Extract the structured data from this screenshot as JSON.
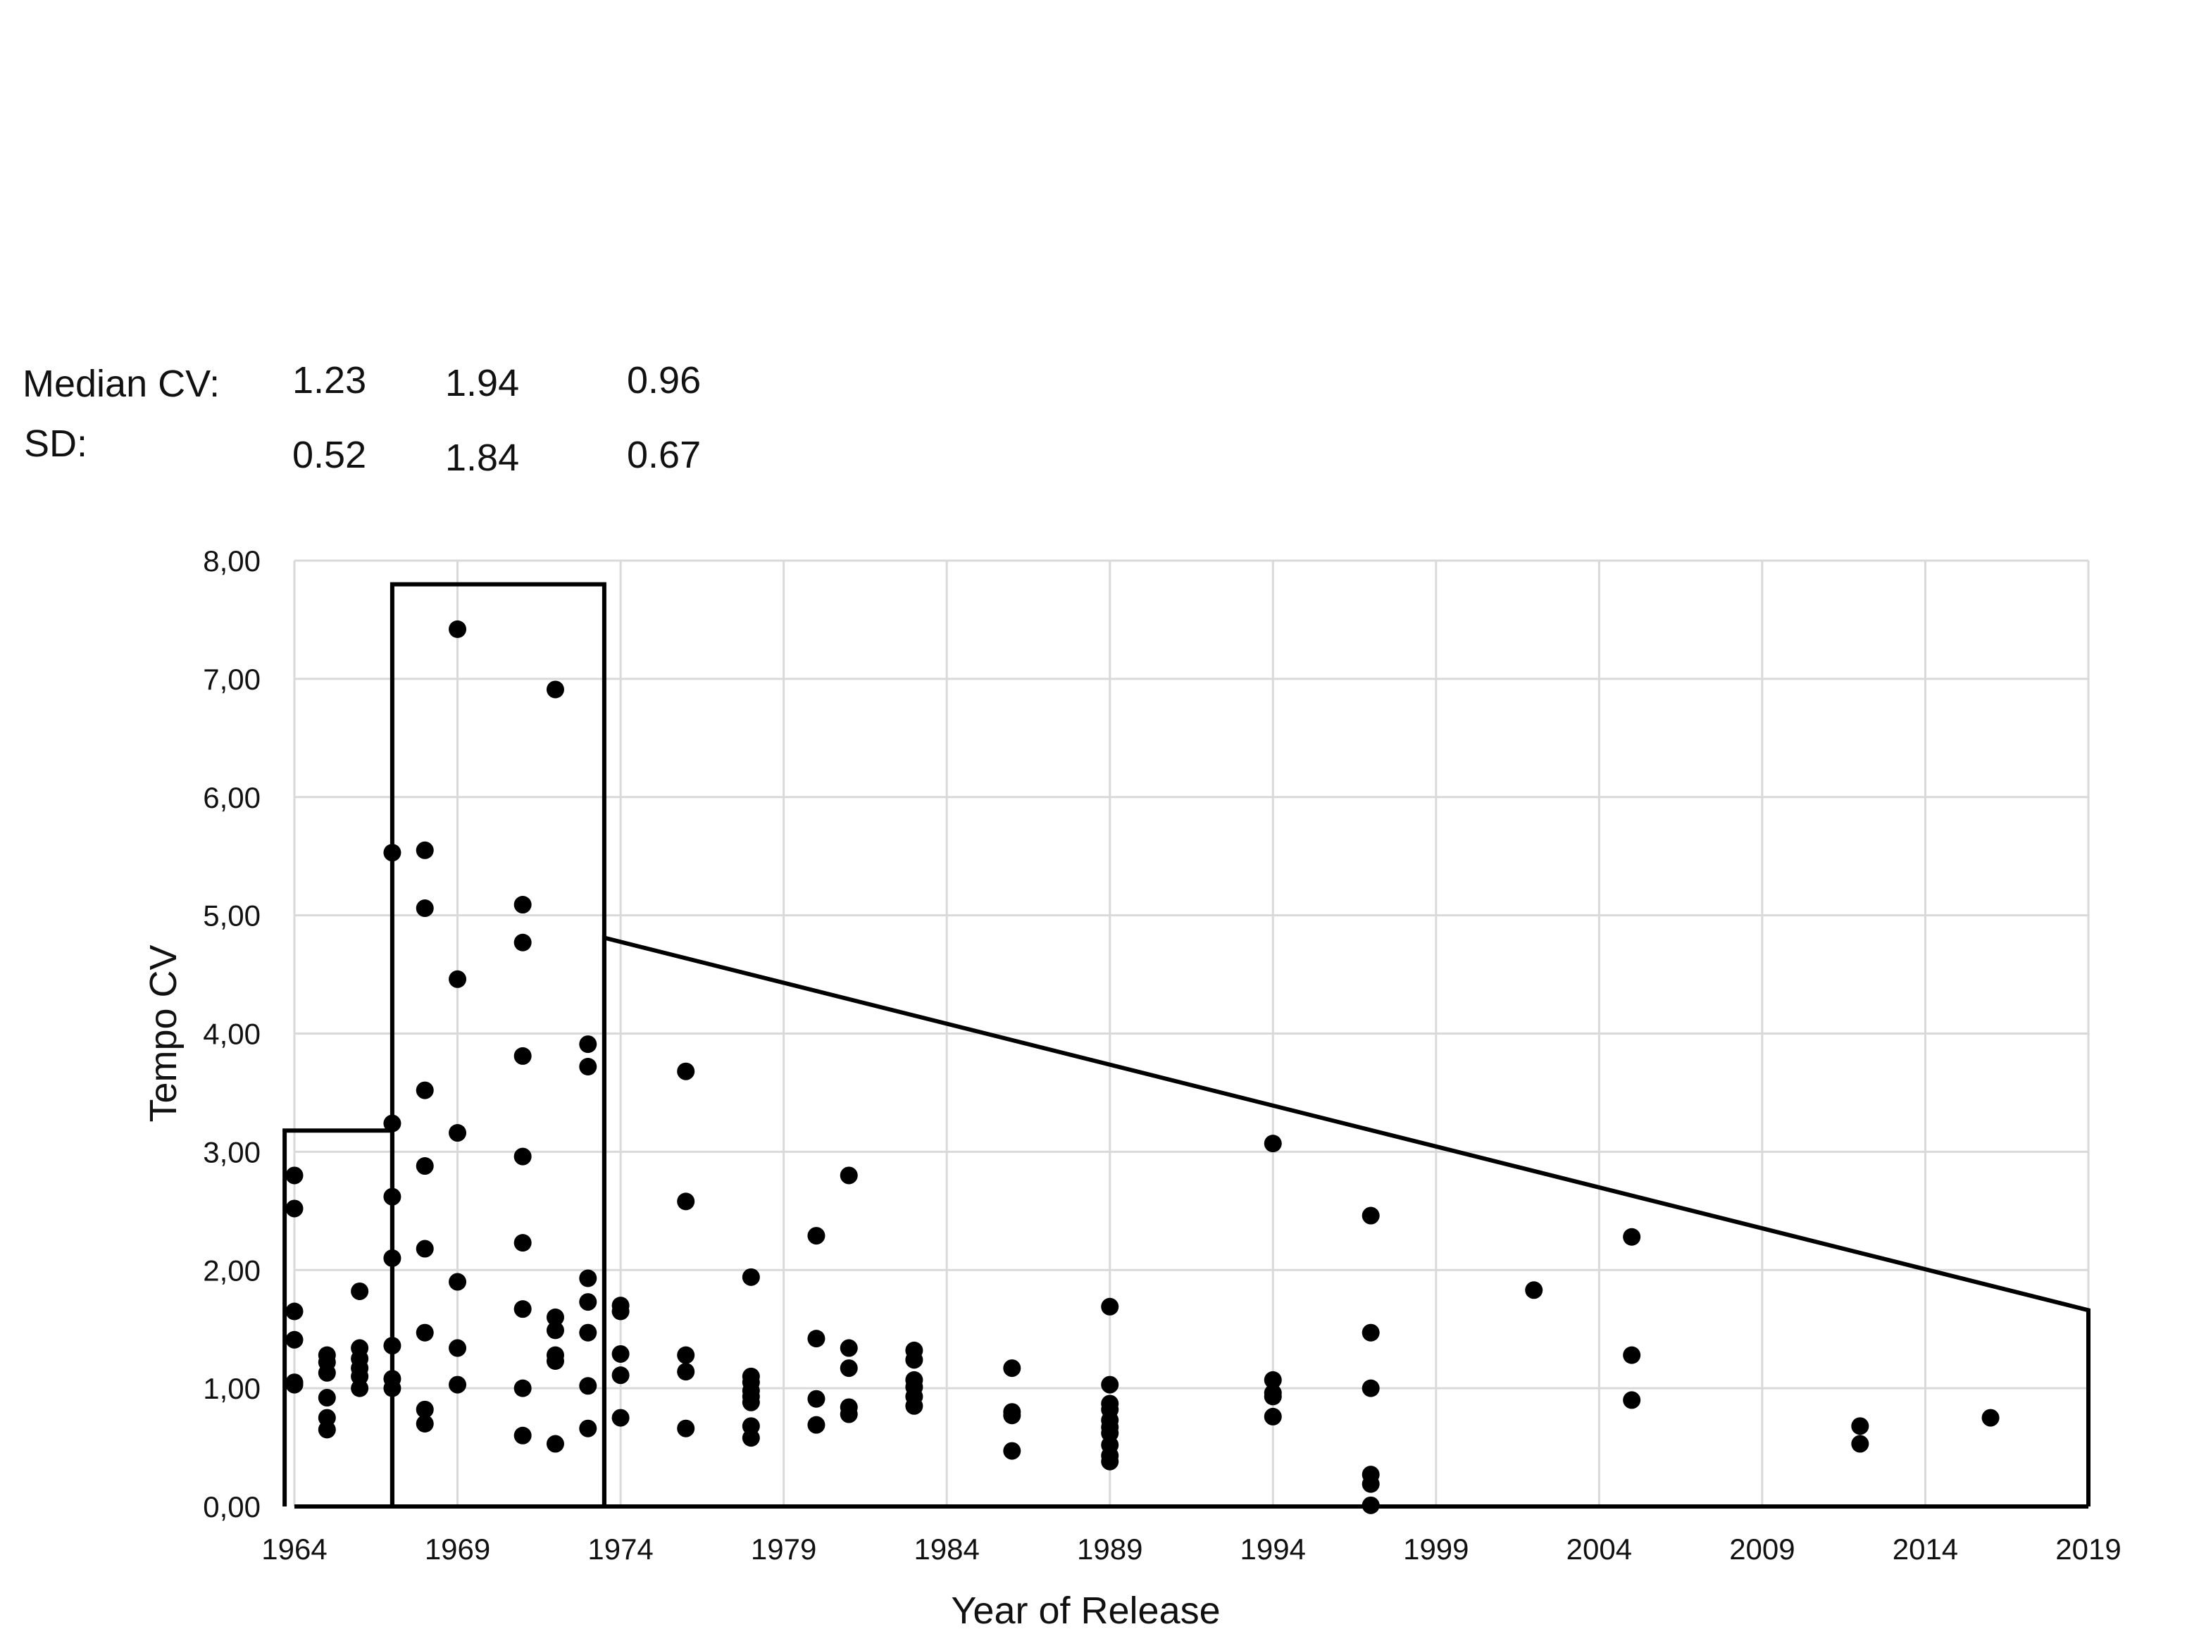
{
  "stats": {
    "median_label": "Median CV:",
    "sd_label": "SD:",
    "median_values": [
      "1.23",
      "1.94",
      "0.96"
    ],
    "sd_values": [
      "0.52",
      "1.84",
      "0.67"
    ]
  },
  "chart_data": {
    "type": "scatter",
    "title": "",
    "xlabel": "Year of Release",
    "ylabel": "Tempo CV",
    "xlim": [
      1964,
      2019
    ],
    "ylim": [
      0,
      8
    ],
    "x_ticks": [
      1964,
      1969,
      1974,
      1979,
      1984,
      1989,
      1994,
      1999,
      2004,
      2009,
      2014,
      2019
    ],
    "y_ticks": [
      "0,00",
      "1,00",
      "2,00",
      "3,00",
      "4,00",
      "5,00",
      "6,00",
      "7,00",
      "8,00"
    ],
    "grid": true,
    "legend": "none",
    "marker_color": "#000000",
    "grid_color": "#d9d9d9",
    "points": [
      [
        1964,
        2.8
      ],
      [
        1964,
        2.52
      ],
      [
        1964,
        1.65
      ],
      [
        1964,
        1.41
      ],
      [
        1964,
        1.05
      ],
      [
        1964,
        1.03
      ],
      [
        1965,
        1.28
      ],
      [
        1965,
        1.22
      ],
      [
        1965,
        1.13
      ],
      [
        1965,
        0.92
      ],
      [
        1965,
        0.75
      ],
      [
        1965,
        0.65
      ],
      [
        1966,
        1.82
      ],
      [
        1966,
        1.34
      ],
      [
        1966,
        1.25
      ],
      [
        1966,
        1.17
      ],
      [
        1966,
        1.1
      ],
      [
        1966,
        1.0
      ],
      [
        1967,
        5.53
      ],
      [
        1967,
        3.24
      ],
      [
        1967,
        2.62
      ],
      [
        1967,
        2.1
      ],
      [
        1967,
        1.36
      ],
      [
        1967,
        1.08
      ],
      [
        1967,
        1.0
      ],
      [
        1968,
        5.55
      ],
      [
        1968,
        5.06
      ],
      [
        1968,
        3.52
      ],
      [
        1968,
        2.88
      ],
      [
        1968,
        2.18
      ],
      [
        1968,
        1.47
      ],
      [
        1968,
        0.82
      ],
      [
        1968,
        0.7
      ],
      [
        1969,
        7.42
      ],
      [
        1969,
        4.46
      ],
      [
        1969,
        3.16
      ],
      [
        1969,
        1.9
      ],
      [
        1969,
        1.34
      ],
      [
        1969,
        1.03
      ],
      [
        1971,
        5.09
      ],
      [
        1971,
        4.77
      ],
      [
        1971,
        3.81
      ],
      [
        1971,
        2.96
      ],
      [
        1971,
        2.23
      ],
      [
        1971,
        1.67
      ],
      [
        1971,
        1.0
      ],
      [
        1971,
        0.6
      ],
      [
        1972,
        6.91
      ],
      [
        1972,
        1.6
      ],
      [
        1972,
        1.49
      ],
      [
        1972,
        1.28
      ],
      [
        1972,
        1.23
      ],
      [
        1972,
        0.53
      ],
      [
        1973,
        3.91
      ],
      [
        1973,
        3.72
      ],
      [
        1973,
        1.93
      ],
      [
        1973,
        1.73
      ],
      [
        1973,
        1.47
      ],
      [
        1973,
        1.02
      ],
      [
        1973,
        0.66
      ],
      [
        1974,
        1.7
      ],
      [
        1974,
        1.65
      ],
      [
        1974,
        1.29
      ],
      [
        1974,
        1.11
      ],
      [
        1974,
        0.75
      ],
      [
        1976,
        3.68
      ],
      [
        1976,
        2.58
      ],
      [
        1976,
        1.28
      ],
      [
        1976,
        1.14
      ],
      [
        1976,
        0.66
      ],
      [
        1978,
        1.94
      ],
      [
        1978,
        1.1
      ],
      [
        1978,
        1.05
      ],
      [
        1978,
        0.98
      ],
      [
        1978,
        0.93
      ],
      [
        1978,
        0.88
      ],
      [
        1978,
        0.68
      ],
      [
        1978,
        0.58
      ],
      [
        1980,
        2.29
      ],
      [
        1980,
        1.42
      ],
      [
        1980,
        0.91
      ],
      [
        1980,
        0.69
      ],
      [
        1981,
        2.8
      ],
      [
        1981,
        1.34
      ],
      [
        1981,
        1.17
      ],
      [
        1981,
        0.84
      ],
      [
        1981,
        0.78
      ],
      [
        1983,
        1.32
      ],
      [
        1983,
        1.24
      ],
      [
        1983,
        1.07
      ],
      [
        1983,
        1.01
      ],
      [
        1983,
        0.93
      ],
      [
        1983,
        0.85
      ],
      [
        1986,
        1.17
      ],
      [
        1986,
        0.8
      ],
      [
        1986,
        0.77
      ],
      [
        1986,
        0.47
      ],
      [
        1989,
        1.69
      ],
      [
        1989,
        1.03
      ],
      [
        1989,
        0.87
      ],
      [
        1989,
        0.82
      ],
      [
        1989,
        0.73
      ],
      [
        1989,
        0.67
      ],
      [
        1989,
        0.62
      ],
      [
        1989,
        0.52
      ],
      [
        1989,
        0.43
      ],
      [
        1989,
        0.38
      ],
      [
        1994,
        3.07
      ],
      [
        1994,
        1.07
      ],
      [
        1994,
        0.96
      ],
      [
        1994,
        0.93
      ],
      [
        1994,
        0.76
      ],
      [
        1997,
        2.46
      ],
      [
        1997,
        1.47
      ],
      [
        1997,
        1.0
      ],
      [
        1997,
        0.27
      ],
      [
        1997,
        0.19
      ],
      [
        1997,
        0.01
      ],
      [
        2002,
        1.83
      ],
      [
        2005,
        2.28
      ],
      [
        2005,
        1.28
      ],
      [
        2005,
        0.9
      ],
      [
        2012,
        0.68
      ],
      [
        2012,
        0.53
      ],
      [
        2016,
        0.75
      ]
    ],
    "outlines": [
      [
        [
          1963.7,
          0
        ],
        [
          1963.7,
          3.18
        ],
        [
          1967,
          3.18
        ],
        [
          1967,
          0
        ]
      ],
      [
        [
          1967,
          0
        ],
        [
          1967,
          7.8
        ],
        [
          1973.5,
          7.8
        ],
        [
          1973.5,
          0
        ]
      ],
      [
        [
          1973.5,
          0
        ],
        [
          1973.5,
          4.81
        ],
        [
          2019,
          1.66
        ],
        [
          2019,
          0
        ]
      ]
    ]
  }
}
